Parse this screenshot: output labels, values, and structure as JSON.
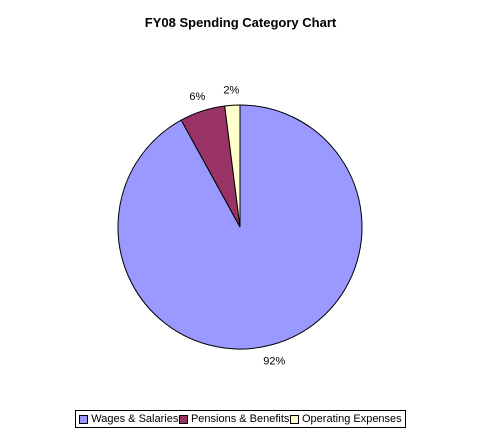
{
  "chart_data": {
    "type": "pie",
    "title": "FY08 Spending Category Chart",
    "slices": [
      {
        "name": "Wages & Salaries",
        "value": 92,
        "label": "92%",
        "color": "#9999FF"
      },
      {
        "name": "Pensions & Benefits",
        "value": 6,
        "label": "6%",
        "color": "#993366"
      },
      {
        "name": "Operating Expenses",
        "value": 2,
        "label": "2%",
        "color": "#FFFFCC"
      }
    ],
    "legend_position": "bottom"
  }
}
